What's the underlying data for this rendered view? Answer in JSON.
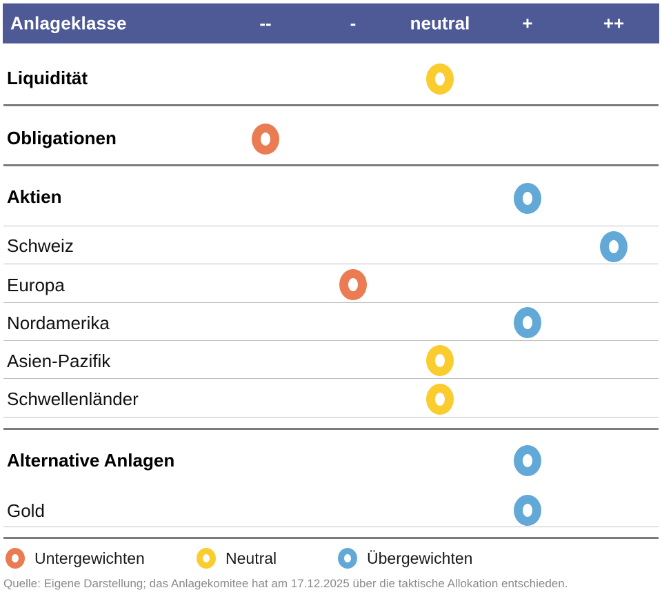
{
  "colors": {
    "header_bg": "#4D5A96",
    "untergewichten": "#EA7B52",
    "neutral": "#FACC2E",
    "uebergewichten": "#62A9D8",
    "thick_line": "#7B7B7B",
    "thin_line": "#BFBFBF",
    "footer_text": "#8A8A8A"
  },
  "header": {
    "title": "Anlageklasse",
    "columns": [
      {
        "key": "--",
        "label": "--"
      },
      {
        "key": "-",
        "label": "-"
      },
      {
        "key": "neutral",
        "label": "neutral"
      },
      {
        "key": "+",
        "label": "+"
      },
      {
        "key": "++",
        "label": "++"
      }
    ]
  },
  "table": {
    "rows": [
      {
        "label": "Liquidität",
        "level": "section",
        "column": "neutral",
        "signal": "neutral"
      },
      {
        "label": "Obligationen",
        "level": "section",
        "column": "--",
        "signal": "untergewichten"
      },
      {
        "label": "Aktien",
        "level": "section",
        "column": "+",
        "signal": "uebergewichten"
      },
      {
        "label": "Schweiz",
        "level": "sub",
        "column": "++",
        "signal": "uebergewichten"
      },
      {
        "label": "Europa",
        "level": "sub",
        "column": "-",
        "signal": "untergewichten"
      },
      {
        "label": "Nordamerika",
        "level": "sub",
        "column": "+",
        "signal": "uebergewichten"
      },
      {
        "label": "Asien-Pazifik",
        "level": "sub",
        "column": "neutral",
        "signal": "neutral"
      },
      {
        "label": "Schwellenländer",
        "level": "sub",
        "column": "neutral",
        "signal": "neutral"
      },
      {
        "label": "Alternative Anlagen",
        "level": "section",
        "column": "+",
        "signal": "uebergewichten"
      },
      {
        "label": "Gold",
        "level": "sub",
        "column": "+",
        "signal": "uebergewichten"
      }
    ]
  },
  "legend": {
    "items": [
      {
        "label": "Untergewichten",
        "color_key": "untergewichten"
      },
      {
        "label": "Neutral",
        "color_key": "neutral"
      },
      {
        "label": "Übergewichten",
        "color_key": "uebergewichten"
      }
    ]
  },
  "footer": {
    "source": "Quelle: Eigene Darstellung; das Anlagekomitee hat am 17.12.2025 über die taktische Allokation entschieden."
  },
  "chart_data": {
    "type": "table",
    "title": "Anlageklasse",
    "scale": [
      "--",
      "-",
      "neutral",
      "+",
      "++"
    ],
    "rows": [
      {
        "label": "Liquidität",
        "group": "section",
        "rating": "neutral",
        "weighting": "Neutral"
      },
      {
        "label": "Obligationen",
        "group": "section",
        "rating": "--",
        "weighting": "Untergewichten"
      },
      {
        "label": "Aktien",
        "group": "section",
        "rating": "+",
        "weighting": "Übergewichten"
      },
      {
        "label": "Schweiz",
        "group": "Aktien",
        "rating": "++",
        "weighting": "Übergewichten"
      },
      {
        "label": "Europa",
        "group": "Aktien",
        "rating": "-",
        "weighting": "Untergewichten"
      },
      {
        "label": "Nordamerika",
        "group": "Aktien",
        "rating": "+",
        "weighting": "Übergewichten"
      },
      {
        "label": "Asien-Pazifik",
        "group": "Aktien",
        "rating": "neutral",
        "weighting": "Neutral"
      },
      {
        "label": "Schwellenländer",
        "group": "Aktien",
        "rating": "neutral",
        "weighting": "Neutral"
      },
      {
        "label": "Alternative Anlagen",
        "group": "section",
        "rating": "+",
        "weighting": "Übergewichten"
      },
      {
        "label": "Gold",
        "group": "Alternative Anlagen",
        "rating": "+",
        "weighting": "Übergewichten"
      }
    ],
    "legend": [
      "Untergewichten",
      "Neutral",
      "Übergewichten"
    ],
    "source": "Quelle: Eigene Darstellung; das Anlagekomitee hat am 17.12.2025 über die taktische Allokation entschieden."
  }
}
